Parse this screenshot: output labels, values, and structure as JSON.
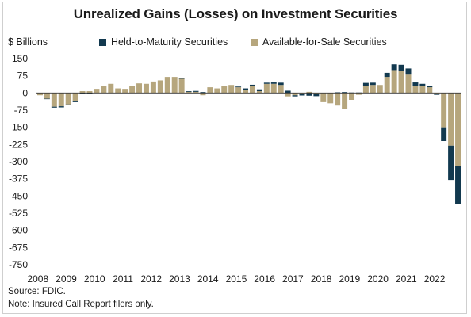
{
  "title": "Unrealized Gains (Losses) on Investment Securities",
  "unit_label": "$ Billions",
  "source": "Source: FDIC.",
  "note": "Note: Insured Call Report filers only.",
  "colors": {
    "htm": "#12394f",
    "afs": "#b6a67d",
    "zero_line": "#333333"
  },
  "chart_data": {
    "type": "bar",
    "stacked": true,
    "title": "Unrealized Gains (Losses) on Investment Securities",
    "ylabel": "$ Billions",
    "ylim": [
      -750,
      150
    ],
    "yticks": [
      150,
      75,
      0,
      -75,
      -150,
      -225,
      -300,
      -375,
      -450,
      -525,
      -600,
      -675,
      -750
    ],
    "xticks": [
      "2008",
      "2009",
      "2010",
      "2011",
      "2012",
      "2013",
      "2014",
      "2015",
      "2016",
      "2017",
      "2018",
      "2019",
      "2020",
      "2021",
      "2022"
    ],
    "quarters_per_year": 4,
    "legend": "top",
    "grid": false,
    "series": [
      {
        "name": "Held-to-Maturity Securities",
        "key": "htm",
        "values": [
          0,
          -2,
          -4,
          -5,
          -4,
          -5,
          -4,
          -3,
          0,
          0,
          0,
          0,
          0,
          0,
          0,
          0,
          0,
          0,
          0,
          0,
          2,
          3,
          4,
          4,
          0,
          0,
          0,
          0,
          3,
          5,
          6,
          8,
          5,
          6,
          10,
          10,
          -5,
          -6,
          -12,
          -9,
          0,
          0,
          3,
          4,
          2,
          2,
          14,
          10,
          0,
          18,
          25,
          28,
          27,
          16,
          10,
          4,
          -3,
          -60,
          -150,
          -165
        ]
      },
      {
        "name": "Available-for-Sale Securities",
        "key": "afs",
        "values": [
          -10,
          -25,
          -60,
          -58,
          -50,
          -35,
          8,
          8,
          18,
          30,
          40,
          20,
          18,
          30,
          42,
          40,
          50,
          55,
          70,
          70,
          62,
          5,
          5,
          -10,
          25,
          20,
          30,
          35,
          25,
          15,
          30,
          8,
          40,
          40,
          35,
          -15,
          -10,
          -5,
          5,
          -5,
          -40,
          -45,
          -55,
          -70,
          -30,
          -8,
          30,
          35,
          35,
          70,
          100,
          95,
          80,
          30,
          30,
          25,
          -5,
          -150,
          -230,
          -320
        ]
      }
    ]
  }
}
